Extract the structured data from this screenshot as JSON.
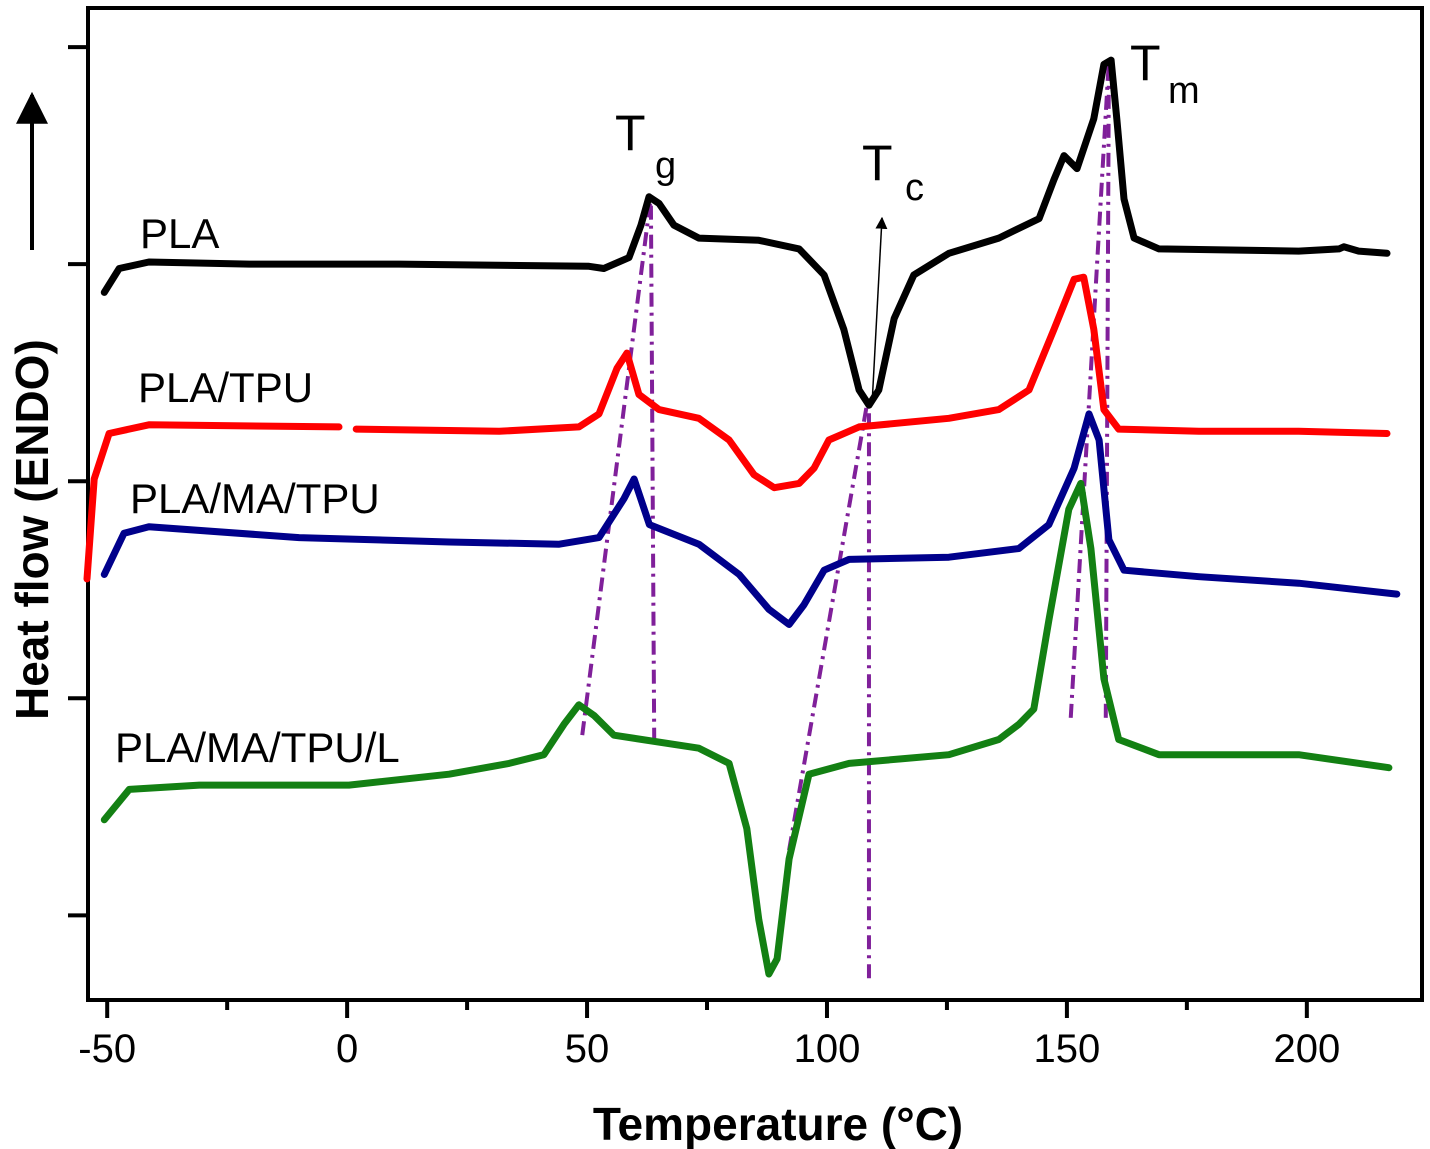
{
  "chart_data": {
    "type": "line",
    "x_label": "Temperature (°C)",
    "y_label": "Heat flow (ENDO)",
    "xlim": [
      -54,
      224
    ],
    "ylim": [
      -0.39,
      4.18
    ],
    "xticks": [
      -50,
      0,
      50,
      100,
      150,
      200
    ],
    "xminorticks": [
      -25,
      25,
      75,
      125,
      175
    ],
    "yticks": [
      0,
      1,
      2,
      3,
      4
    ],
    "series": [
      {
        "name": "PLA",
        "color": "#000000",
        "x": [
          -50.6,
          -47.5,
          -41.3,
          -20.4,
          10.8,
          50.4,
          53.5,
          58.75,
          61.25,
          62.9,
          65,
          68.1,
          73.3,
          85.8,
          94.2,
          99.4,
          103.5,
          106.7,
          108.75,
          110.8,
          114,
          118.1,
          125.4,
          135.8,
          144.2,
          147.3,
          149.4,
          152.1,
          155.6,
          157.7,
          159.2,
          160.4,
          161.9,
          164,
          169.2,
          198.3,
          206.7,
          207.7,
          210.8,
          216.7
        ],
        "values": [
          2.87,
          2.98,
          3.01,
          3.0,
          3.0,
          2.99,
          2.98,
          3.03,
          3.18,
          3.31,
          3.28,
          3.18,
          3.12,
          3.11,
          3.07,
          2.95,
          2.7,
          2.42,
          2.35,
          2.42,
          2.75,
          2.95,
          3.05,
          3.12,
          3.21,
          3.39,
          3.5,
          3.44,
          3.67,
          3.92,
          3.94,
          3.67,
          3.3,
          3.12,
          3.07,
          3.06,
          3.07,
          3.08,
          3.06,
          3.05
        ]
      },
      {
        "name": "PLA/TPU",
        "color": "#ff0000",
        "x": [
          -54.2,
          -52.7,
          -49.6,
          -41.3,
          -1.7,
          0,
          1.9,
          31.7,
          48.3,
          52.5,
          56.25,
          58.3,
          60.8,
          65,
          73.3,
          79.6,
          84.8,
          89,
          94.2,
          97.3,
          100.4,
          106.7,
          125.4,
          135.8,
          142.1,
          147.3,
          151.5,
          153.5,
          155.6,
          157.7,
          160.8,
          177.5,
          198.3,
          216.7
        ],
        "values": [
          1.55,
          2.01,
          2.22,
          2.26,
          2.25,
          null,
          2.24,
          2.23,
          2.25,
          2.31,
          2.52,
          2.59,
          2.4,
          2.33,
          2.29,
          2.19,
          2.03,
          1.97,
          1.99,
          2.06,
          2.19,
          2.25,
          2.29,
          2.33,
          2.42,
          2.7,
          2.93,
          2.94,
          2.7,
          2.33,
          2.24,
          2.23,
          2.23,
          2.22
        ]
      },
      {
        "name": "PLA/MA/TPU",
        "color": "#00008b",
        "x": [
          -50.6,
          -46.5,
          -41.3,
          -10,
          21.25,
          44.2,
          52.5,
          57.7,
          59.8,
          63,
          73.3,
          81.7,
          87.9,
          92.1,
          95.2,
          99.4,
          104.6,
          125.4,
          140,
          146.25,
          151.5,
          154.6,
          156.7,
          158.75,
          161.9,
          177.5,
          198.3,
          218.75
        ],
        "values": [
          1.57,
          1.76,
          1.79,
          1.74,
          1.72,
          1.71,
          1.74,
          1.92,
          2.01,
          1.8,
          1.71,
          1.57,
          1.41,
          1.34,
          1.43,
          1.59,
          1.64,
          1.65,
          1.69,
          1.8,
          2.06,
          2.31,
          2.19,
          1.73,
          1.59,
          1.56,
          1.53,
          1.48
        ]
      },
      {
        "name": "PLA/MA/TPU/L",
        "color": "#138013",
        "x": [
          -50.6,
          -45.4,
          -30.8,
          0.4,
          21.25,
          33.75,
          41,
          45.2,
          48.3,
          51.5,
          55.6,
          73.3,
          79.6,
          83.3,
          85.8,
          87.9,
          89.6,
          92.1,
          96.25,
          104.6,
          125.4,
          135.8,
          140,
          143.1,
          146.25,
          150.4,
          152.9,
          155,
          157.7,
          160.8,
          169.2,
          198.3,
          217.1
        ],
        "values": [
          0.44,
          0.58,
          0.6,
          0.6,
          0.65,
          0.7,
          0.74,
          0.88,
          0.97,
          0.92,
          0.83,
          0.77,
          0.7,
          0.4,
          -0.02,
          -0.27,
          -0.2,
          0.26,
          0.65,
          0.7,
          0.74,
          0.81,
          0.88,
          0.95,
          1.36,
          1.87,
          1.99,
          1.69,
          1.09,
          0.81,
          0.74,
          0.74,
          0.68
        ]
      }
    ],
    "annotations": [
      {
        "text": "T",
        "sub": "g"
      },
      {
        "text": "T",
        "sub": "c"
      },
      {
        "text": "T",
        "sub": "m"
      }
    ],
    "guide_color": "#80209a",
    "guides": [
      {
        "x": [
          49,
          63.3
        ],
        "y": [
          0.83,
          3.31
        ]
      },
      {
        "x": [
          64,
          63.3
        ],
        "y": [
          0.8,
          3.31
        ]
      },
      {
        "x": [
          108.75,
          108.75
        ],
        "y": [
          -0.29,
          2.33
        ]
      },
      {
        "x": [
          92.1,
          108.3
        ],
        "y": [
          0.3,
          2.35
        ]
      },
      {
        "x": [
          150.8,
          158.75
        ],
        "y": [
          0.91,
          3.94
        ]
      },
      {
        "x": [
          158.1,
          158.75
        ],
        "y": [
          0.91,
          3.94
        ]
      }
    ]
  }
}
